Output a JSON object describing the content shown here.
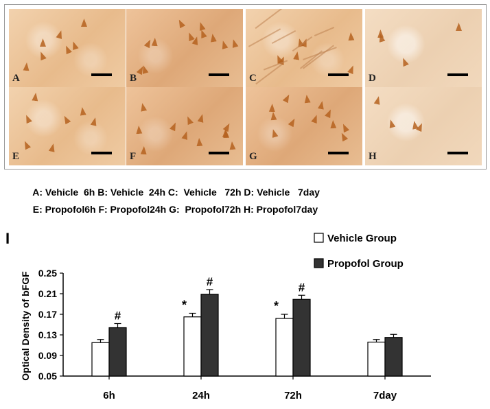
{
  "micrograph_panels": [
    {
      "letter": "A",
      "caption": "A: Vehicle  6h"
    },
    {
      "letter": "B",
      "caption": "B: Vehicle  24h"
    },
    {
      "letter": "C",
      "caption": "C:  Vehicle   72h"
    },
    {
      "letter": "D",
      "caption": "D: Vehicle   7day"
    },
    {
      "letter": "E",
      "caption": "E: Propofol6h"
    },
    {
      "letter": "F",
      "caption": "F: Propofol24h"
    },
    {
      "letter": "G",
      "caption": "G:  Propofol72h"
    },
    {
      "letter": "H",
      "caption": "H: Propofol7day"
    }
  ],
  "chart_data": {
    "type": "bar",
    "panel_label": "I",
    "title": "",
    "xlabel": "",
    "ylabel": "Optical Density of bFGF",
    "categories": [
      "6h",
      "24h",
      "72h",
      "7day"
    ],
    "ylim": [
      0.05,
      0.25
    ],
    "yticks": [
      "0.05",
      "0.09",
      "0.13",
      "0.17",
      "0.21",
      "0.25"
    ],
    "series": [
      {
        "name": "Vehicle Group",
        "color": "#ffffff",
        "values": [
          0.115,
          0.165,
          0.162,
          0.116
        ],
        "errors": [
          0.006,
          0.007,
          0.008,
          0.005
        ],
        "markers": [
          "",
          "*",
          "*",
          ""
        ]
      },
      {
        "name": "Propofol Group",
        "color": "#333333",
        "values": [
          0.144,
          0.209,
          0.199,
          0.125
        ],
        "errors": [
          0.008,
          0.009,
          0.008,
          0.006
        ],
        "markers": [
          "#",
          "#",
          "#",
          ""
        ]
      }
    ],
    "legend_position": "top-right"
  }
}
